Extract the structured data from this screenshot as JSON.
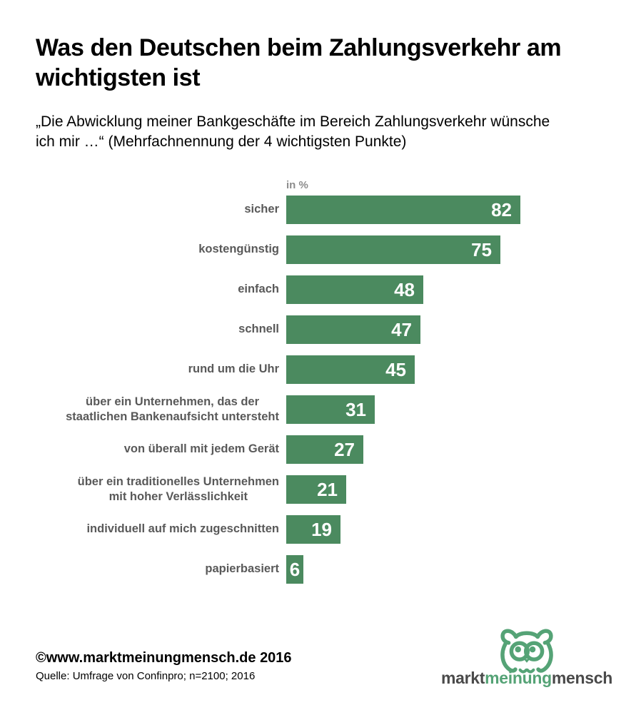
{
  "page": {
    "title": "Was den Deutschen beim Zahlungsverkehr am\nwichtigsten ist",
    "subtitle": "„Die Abwicklung meiner Bankgeschäfte im Bereich Zahlungsverkehr wünsche\nich mir …“ (Mehrfachnennung der 4 wichtigsten Punkte)"
  },
  "chart_data": {
    "type": "bar",
    "orientation": "horizontal",
    "title": "Was den Deutschen beim Zahlungsverkehr am wichtigsten ist",
    "subtitle": "„Die Abwicklung meiner Bankgeschäfte im Bereich Zahlungsverkehr wünsche ich mir …“ (Mehrfachnennung der 4 wichtigsten Punkte)",
    "unit_label": "in %",
    "categories": [
      "sicher",
      "kostengünstig",
      "einfach",
      "schnell",
      "rund um die Uhr",
      "über ein Unternehmen, das der\nstaatlichen Bankenaufsicht untersteht",
      "von überall mit jedem Gerät",
      "über ein traditionelles Unternehmen\nmit hoher Verlässlichkeit",
      "individuell auf mich zugeschnitten",
      "papierbasiert"
    ],
    "values": [
      82,
      75,
      48,
      47,
      45,
      31,
      27,
      21,
      19,
      6
    ],
    "xlim": [
      0,
      100
    ],
    "grid": false,
    "legend": false,
    "value_label_position": "inside-end",
    "bar_color": "#4b8a5f",
    "value_label_color": "#ffffff",
    "category_label_color": "#595959"
  },
  "footer": {
    "copyright": "©www.marktmeinungmensch.de 2016",
    "source": "Quelle: Umfrage von Confinpro; n=2100; 2016"
  },
  "logo": {
    "part1": "markt",
    "part2": "meinung",
    "part3": "mensch",
    "green": "#55a376",
    "dark": "#4a4a4a"
  }
}
